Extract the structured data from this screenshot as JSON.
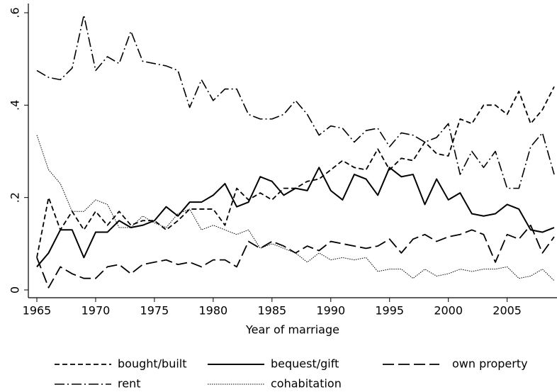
{
  "chart_data": {
    "type": "line",
    "x": [
      1965,
      1966,
      1967,
      1968,
      1969,
      1970,
      1971,
      1972,
      1973,
      1974,
      1975,
      1976,
      1977,
      1978,
      1979,
      1980,
      1981,
      1982,
      1983,
      1984,
      1985,
      1986,
      1987,
      1988,
      1989,
      1990,
      1991,
      1992,
      1993,
      1994,
      1995,
      1996,
      1997,
      1998,
      1999,
      2000,
      2001,
      2002,
      2003,
      2004,
      2005,
      2006,
      2007,
      2008,
      2009
    ],
    "xlim": [
      1965,
      2009
    ],
    "xticks": [
      1965,
      1970,
      1975,
      1980,
      1985,
      1990,
      1995,
      2000,
      2005
    ],
    "ylim": [
      0,
      0.6
    ],
    "yticks": [
      0,
      {
        "value": 0.2,
        "label": ".2"
      },
      {
        "value": 0.4,
        "label": ".4"
      },
      {
        "value": 0.6,
        "label": ".6"
      }
    ],
    "x_label": "Year of marriage",
    "series": [
      {
        "name": "bought/built",
        "color": "#000000",
        "values": [
          0.07,
          0.2,
          0.13,
          0.17,
          0.13,
          0.17,
          0.14,
          0.17,
          0.14,
          0.15,
          0.15,
          0.13,
          0.15,
          0.175,
          0.175,
          0.175,
          0.14,
          0.22,
          0.195,
          0.21,
          0.195,
          0.22,
          0.22,
          0.235,
          0.24,
          0.26,
          0.28,
          0.265,
          0.26,
          0.305,
          0.26,
          0.285,
          0.28,
          0.32,
          0.295,
          0.29,
          0.37,
          0.36,
          0.4,
          0.4,
          0.38,
          0.43,
          0.36,
          0.39,
          0.44
        ]
      },
      {
        "name": "bequest/gift",
        "color": "#000000",
        "values": [
          0.05,
          0.08,
          0.13,
          0.13,
          0.07,
          0.125,
          0.125,
          0.15,
          0.135,
          0.14,
          0.15,
          0.18,
          0.16,
          0.19,
          0.19,
          0.205,
          0.23,
          0.18,
          0.19,
          0.245,
          0.235,
          0.205,
          0.22,
          0.215,
          0.265,
          0.215,
          0.195,
          0.25,
          0.24,
          0.205,
          0.265,
          0.245,
          0.25,
          0.185,
          0.24,
          0.195,
          0.21,
          0.165,
          0.16,
          0.165,
          0.185,
          0.175,
          0.13,
          0.125,
          0.135
        ]
      },
      {
        "name": "own property",
        "color": "#000000",
        "values": [
          0.07,
          0.005,
          0.05,
          0.035,
          0.025,
          0.025,
          0.05,
          0.055,
          0.035,
          0.055,
          0.06,
          0.065,
          0.055,
          0.06,
          0.05,
          0.065,
          0.065,
          0.05,
          0.105,
          0.09,
          0.105,
          0.095,
          0.08,
          0.095,
          0.085,
          0.105,
          0.1,
          0.095,
          0.09,
          0.095,
          0.11,
          0.08,
          0.11,
          0.12,
          0.105,
          0.115,
          0.12,
          0.13,
          0.12,
          0.06,
          0.12,
          0.11,
          0.14,
          0.08,
          0.115
        ]
      },
      {
        "name": "rent",
        "color": "#000000",
        "values": [
          0.475,
          0.46,
          0.455,
          0.48,
          0.595,
          0.475,
          0.505,
          0.49,
          0.56,
          0.495,
          0.49,
          0.485,
          0.475,
          0.395,
          0.455,
          0.41,
          0.435,
          0.435,
          0.38,
          0.37,
          0.37,
          0.38,
          0.41,
          0.38,
          0.335,
          0.355,
          0.35,
          0.32,
          0.345,
          0.35,
          0.31,
          0.34,
          0.335,
          0.32,
          0.33,
          0.36,
          0.25,
          0.3,
          0.265,
          0.3,
          0.22,
          0.22,
          0.31,
          0.34,
          0.25
        ]
      },
      {
        "name": "cohabitation",
        "color": "#000000",
        "values": [
          0.335,
          0.26,
          0.23,
          0.17,
          0.17,
          0.195,
          0.185,
          0.135,
          0.135,
          0.16,
          0.145,
          0.135,
          0.165,
          0.175,
          0.13,
          0.14,
          0.13,
          0.12,
          0.13,
          0.09,
          0.1,
          0.09,
          0.08,
          0.06,
          0.08,
          0.065,
          0.07,
          0.065,
          0.07,
          0.04,
          0.045,
          0.045,
          0.025,
          0.045,
          0.03,
          0.035,
          0.045,
          0.04,
          0.045,
          0.045,
          0.05,
          0.025,
          0.03,
          0.045,
          0.02
        ]
      }
    ]
  }
}
